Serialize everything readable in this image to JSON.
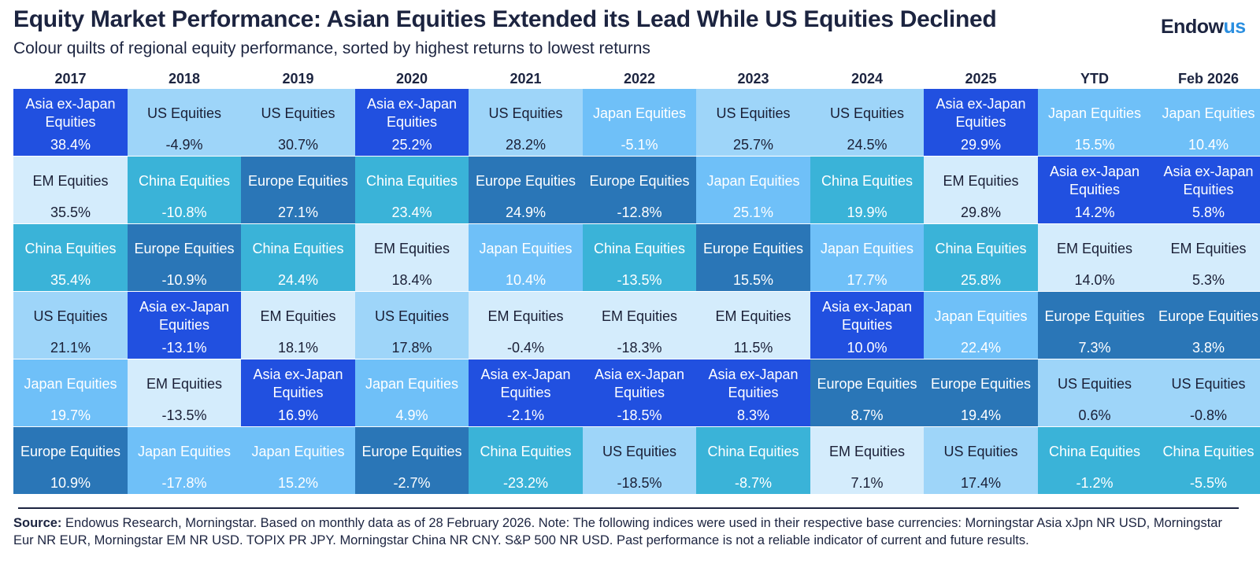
{
  "header": {
    "title": "Equity Market Performance: Asian Equities Extended its Lead While US Equities Declined",
    "subtitle": "Colour quilts of regional equity performance, sorted by highest returns to lowest returns"
  },
  "logo": {
    "text_main": "Endow",
    "text_accent": "us"
  },
  "colors": {
    "Asia ex-Japan Equities": {
      "bg": "#2150e0",
      "fg": "#ffffff"
    },
    "US Equities": {
      "bg": "#9ed5f9",
      "fg": "#1a1f36"
    },
    "EM Equities": {
      "bg": "#d4ecfc",
      "fg": "#1a1f36"
    },
    "China Equities": {
      "bg": "#3ab3d8",
      "fg": "#ffffff"
    },
    "Europe Equities": {
      "bg": "#2a76b7",
      "fg": "#ffffff"
    },
    "Japan Equities": {
      "bg": "#6fc0f8",
      "fg": "#ffffff"
    }
  },
  "chart_data": {
    "type": "table",
    "title": "Equity Market Performance: Asian Equities Extended its Lead While US Equities Declined",
    "subtitle": "Colour quilts of regional equity performance, sorted by highest returns to lowest returns",
    "columns": [
      "2017",
      "2018",
      "2019",
      "2020",
      "2021",
      "2022",
      "2023",
      "2024",
      "2025",
      "YTD",
      "Feb 2026"
    ],
    "rank_order": "highest returns to lowest returns",
    "quilt": [
      [
        {
          "label": "Asia ex-Japan Equities",
          "value": "38.4%"
        },
        {
          "label": "EM Equities",
          "value": "35.5%"
        },
        {
          "label": "China Equities",
          "value": "35.4%"
        },
        {
          "label": "US Equities",
          "value": "21.1%"
        },
        {
          "label": "Japan Equities",
          "value": "19.7%"
        },
        {
          "label": "Europe Equities",
          "value": "10.9%"
        }
      ],
      [
        {
          "label": "US Equities",
          "value": "-4.9%"
        },
        {
          "label": "China Equities",
          "value": "-10.8%"
        },
        {
          "label": "Europe Equities",
          "value": "-10.9%"
        },
        {
          "label": "Asia ex-Japan Equities",
          "value": "-13.1%"
        },
        {
          "label": "EM Equities",
          "value": "-13.5%"
        },
        {
          "label": "Japan Equities",
          "value": "-17.8%"
        }
      ],
      [
        {
          "label": "US Equities",
          "value": "30.7%"
        },
        {
          "label": "Europe Equities",
          "value": "27.1%"
        },
        {
          "label": "China Equities",
          "value": "24.4%"
        },
        {
          "label": "EM Equities",
          "value": "18.1%"
        },
        {
          "label": "Asia ex-Japan Equities",
          "value": "16.9%"
        },
        {
          "label": "Japan Equities",
          "value": "15.2%"
        }
      ],
      [
        {
          "label": "Asia ex-Japan Equities",
          "value": "25.2%"
        },
        {
          "label": "China Equities",
          "value": "23.4%"
        },
        {
          "label": "EM Equities",
          "value": "18.4%"
        },
        {
          "label": "US Equities",
          "value": "17.8%"
        },
        {
          "label": "Japan Equities",
          "value": "4.9%"
        },
        {
          "label": "Europe Equities",
          "value": "-2.7%"
        }
      ],
      [
        {
          "label": "US Equities",
          "value": "28.2%"
        },
        {
          "label": "Europe Equities",
          "value": "24.9%"
        },
        {
          "label": "Japan Equities",
          "value": "10.4%"
        },
        {
          "label": "EM Equities",
          "value": "-0.4%"
        },
        {
          "label": "Asia ex-Japan Equities",
          "value": "-2.1%"
        },
        {
          "label": "China Equities",
          "value": "-23.2%"
        }
      ],
      [
        {
          "label": "Japan Equities",
          "value": "-5.1%"
        },
        {
          "label": "Europe Equities",
          "value": "-12.8%"
        },
        {
          "label": "China Equities",
          "value": "-13.5%"
        },
        {
          "label": "EM Equities",
          "value": "-18.3%"
        },
        {
          "label": "Asia ex-Japan Equities",
          "value": "-18.5%"
        },
        {
          "label": "US Equities",
          "value": "-18.5%"
        }
      ],
      [
        {
          "label": "US Equities",
          "value": "25.7%"
        },
        {
          "label": "Japan Equities",
          "value": "25.1%"
        },
        {
          "label": "Europe Equities",
          "value": "15.5%"
        },
        {
          "label": "EM Equities",
          "value": "11.5%"
        },
        {
          "label": "Asia ex-Japan Equities",
          "value": "8.3%"
        },
        {
          "label": "China Equities",
          "value": "-8.7%"
        }
      ],
      [
        {
          "label": "US Equities",
          "value": "24.5%"
        },
        {
          "label": "China Equities",
          "value": "19.9%"
        },
        {
          "label": "Japan Equities",
          "value": "17.7%"
        },
        {
          "label": "Asia ex-Japan Equities",
          "value": "10.0%"
        },
        {
          "label": "Europe Equities",
          "value": "8.7%"
        },
        {
          "label": "EM Equities",
          "value": "7.1%"
        }
      ],
      [
        {
          "label": "Asia ex-Japan Equities",
          "value": "29.9%"
        },
        {
          "label": "EM Equities",
          "value": "29.8%"
        },
        {
          "label": "China Equities",
          "value": "25.8%"
        },
        {
          "label": "Japan Equities",
          "value": "22.4%"
        },
        {
          "label": "Europe Equities",
          "value": "19.4%"
        },
        {
          "label": "US Equities",
          "value": "17.4%"
        }
      ],
      [
        {
          "label": "Japan Equities",
          "value": "15.5%"
        },
        {
          "label": "Asia ex-Japan Equities",
          "value": "14.2%"
        },
        {
          "label": "EM Equities",
          "value": "14.0%"
        },
        {
          "label": "Europe Equities",
          "value": "7.3%"
        },
        {
          "label": "US Equities",
          "value": "0.6%"
        },
        {
          "label": "China Equities",
          "value": "-1.2%"
        }
      ],
      [
        {
          "label": "Japan Equities",
          "value": "10.4%"
        },
        {
          "label": "Asia ex-Japan Equities",
          "value": "5.8%"
        },
        {
          "label": "EM Equities",
          "value": "5.3%"
        },
        {
          "label": "Europe Equities",
          "value": "3.8%"
        },
        {
          "label": "US Equities",
          "value": "-0.8%"
        },
        {
          "label": "China Equities",
          "value": "-5.5%"
        }
      ]
    ]
  },
  "footer": {
    "source_label": "Source:",
    "source_text": " Endowus Research, Morningstar. Based on monthly data as of 28 February 2026. Note: The following indices were used in their respective base currencies: Morningstar Asia xJpn NR USD, Morningstar Eur NR EUR, Morningstar EM NR USD. TOPIX PR JPY. Morningstar China NR CNY. S&P 500 NR USD. Past performance is not a reliable indicator of current and future results."
  }
}
